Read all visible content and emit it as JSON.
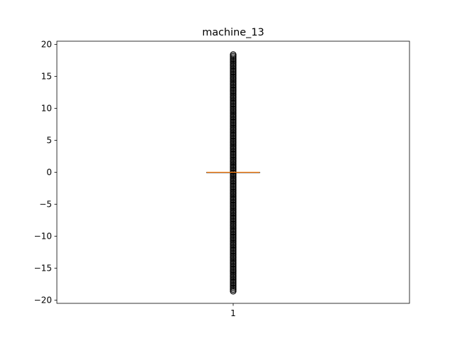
{
  "chart_data": {
    "type": "box",
    "title": "machine_13",
    "xlabel": "",
    "ylabel": "",
    "categories": [
      "1"
    ],
    "ylim": [
      -20.5,
      20.5
    ],
    "y_ticks": [
      -20,
      -15,
      -10,
      -5,
      0,
      5,
      10,
      15,
      20
    ],
    "series": [
      {
        "name": "1",
        "median": 0,
        "q1": 0,
        "q3": 0,
        "whisker_low": 0,
        "whisker_high": 0,
        "outliers_min": -18.6,
        "outliers_max": 18.5,
        "outliers_dense": true
      }
    ],
    "colors": {
      "median": "#ff7f0e",
      "box": "#000000",
      "flier": "#000000"
    },
    "grid": false
  }
}
